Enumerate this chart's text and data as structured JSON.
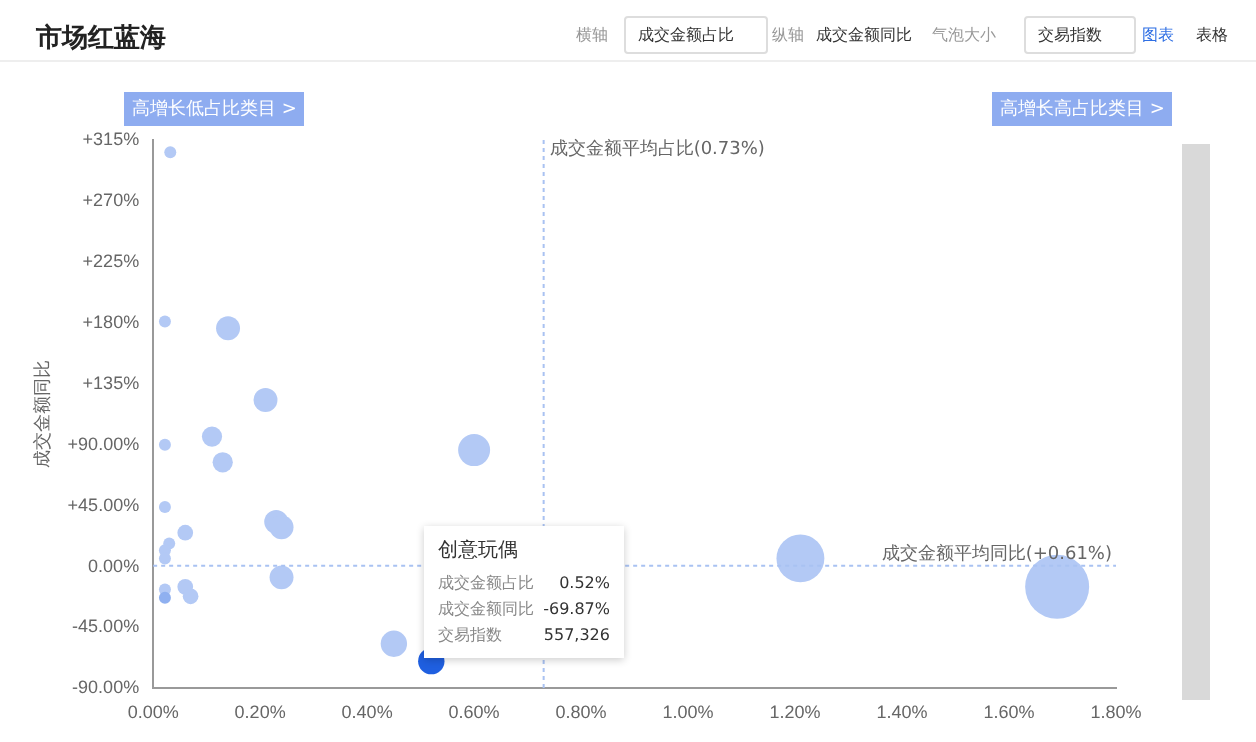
{
  "chart_data": {
    "type": "bubble",
    "title": "市场红蓝海",
    "ylabel": "成交金额同比",
    "annotations": [
      "横轴",
      "成交金额占比",
      "纵轴",
      "成交金额同比",
      "气泡大小",
      "交易指数",
      "图表",
      "表格",
      "高增长低占比类目 >",
      "高增长高占比类目 >",
      "创意玩偶",
      "成交金额占比",
      "0.52%",
      "成交金额同比",
      "-69.87%",
      "交易指数",
      "557,326"
    ],
    "x": [
      0.032,
      0.022,
      0.14,
      0.21,
      0.11,
      0.13,
      0.022,
      0.6,
      0.022,
      0.23,
      0.24,
      0.06,
      0.03,
      0.022,
      0.022,
      0.24,
      0.022,
      0.022,
      0.06,
      0.07,
      0.45,
      0.52,
      1.21,
      1.69
    ],
    "values": [
      306,
      181,
      176,
      123,
      96,
      77,
      90,
      86,
      44,
      33,
      29,
      25,
      17,
      12,
      6,
      -8,
      -17,
      -23,
      -15,
      -22,
      -57,
      -69.87,
      6,
      -15
    ],
    "sizes": [
      0.035,
      0.035,
      0.14,
      0.14,
      0.1,
      0.1,
      0.035,
      0.25,
      0.035,
      0.14,
      0.14,
      0.06,
      0.035,
      0.035,
      0.035,
      0.14,
      0.035,
      0.035,
      0.06,
      0.06,
      0.17,
      0.17,
      0.56,
      1
    ],
    "colors": [
      "#b3c9f5",
      "#b3c9f5",
      "#b3c9f5",
      "#b3c9f5",
      "#b3c9f5",
      "#b3c9f5",
      "#b3c9f5",
      "#b3c9f5",
      "#b3c9f5",
      "#b3c9f5",
      "#b3c9f5",
      "#b3c9f5",
      "#b3c9f5",
      "#b3c9f5",
      "#b3c9f5",
      "#b3c9f5",
      "#b3c9f5",
      "#8fb0f0",
      "#b3c9f5",
      "#b3c9f5",
      "#b3c9f5",
      "#1f5fe0",
      "#b3c9f5",
      "#b3c9f5"
    ],
    "xlim": [
      0,
      1.8
    ],
    "xticks": [
      {
        "value": 0,
        "label": "0.00%"
      },
      {
        "value": 0.2,
        "label": "0.20%"
      },
      {
        "value": 0.4,
        "label": "0.40%"
      },
      {
        "value": 0.6,
        "label": "0.60%"
      },
      {
        "value": 0.8,
        "label": "0.80%"
      },
      {
        "value": 1.0,
        "label": "1.00%"
      },
      {
        "value": 1.2,
        "label": "1.20%"
      },
      {
        "value": 1.4,
        "label": "1.40%"
      },
      {
        "value": 1.6,
        "label": "1.60%"
      },
      {
        "value": 1.8,
        "label": "1.80%"
      }
    ],
    "ylim": [
      -90,
      315
    ],
    "yticks": [
      {
        "value": -90,
        "label": "-90.00%"
      },
      {
        "value": -45,
        "label": "-45.00%"
      },
      {
        "value": 0,
        "label": "0.00%"
      },
      {
        "value": 45,
        "label": "+45.00%"
      },
      {
        "value": 90,
        "label": "+90.00%"
      },
      {
        "value": 135,
        "label": "+135%"
      },
      {
        "value": 180,
        "label": "+180%"
      },
      {
        "value": 225,
        "label": "+225%"
      },
      {
        "value": 270,
        "label": "+270%"
      },
      {
        "value": 315,
        "label": "+315%"
      }
    ],
    "ref_lines": [
      {
        "axis": "x",
        "value": 0.73,
        "label": "成交金额平均占比(0.73%)",
        "color": "#a9c2f2",
        "line_style": "dotted"
      },
      {
        "axis": "y",
        "value": 0.61,
        "label": "成交金额平均同比(+0.61%)",
        "color": "#a9c2f2",
        "line_style": "dotted"
      }
    ],
    "legend": false,
    "grid": false
  }
}
